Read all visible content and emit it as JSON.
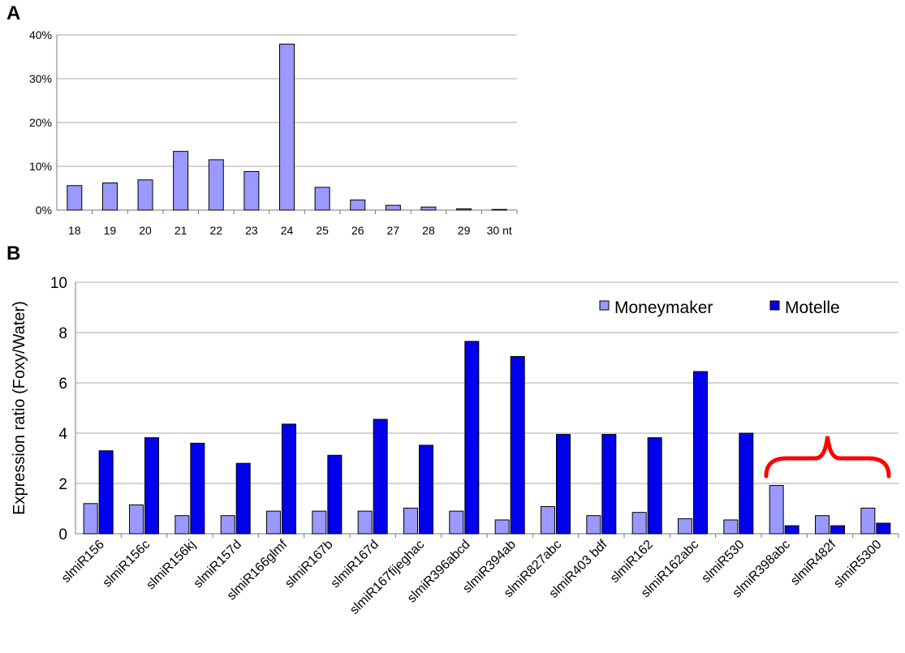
{
  "panel_a": {
    "label": "A"
  },
  "panel_b": {
    "label": "B"
  },
  "colors": {
    "light": "#9999ff",
    "dark": "#0000ee",
    "bracket": "#ff0000",
    "grid": "#aaaaaa"
  },
  "chart_data": [
    {
      "type": "bar",
      "categories": [
        "18",
        "19",
        "20",
        "21",
        "22",
        "23",
        "24",
        "25",
        "26",
        "27",
        "28",
        "29",
        "30 nt"
      ],
      "values": [
        5.6,
        6.2,
        6.9,
        13.4,
        11.5,
        8.8,
        37.9,
        5.2,
        2.3,
        1.1,
        0.7,
        0.3,
        0.15
      ],
      "ylim": [
        0,
        40
      ],
      "yticks": [
        "0%",
        "10%",
        "20%",
        "30%",
        "40%"
      ],
      "grid": true
    },
    {
      "type": "bar",
      "categories": [
        "slmiR156",
        "slmiR156c",
        "slmiR156kj",
        "slmiR157d",
        "slmiR166glmf",
        "slmiR167b",
        "slmiR167d",
        "slmiR167fijeghac",
        "slmiR396abcd",
        "slmiR394ab",
        "slmiR827abc",
        "slmiR403 bdf",
        "slmiR162",
        "slmiR162abc",
        "slmiR530",
        "slmiR398abc",
        "slmiR482f",
        "slmiR5300"
      ],
      "series": [
        {
          "name": "Moneymaker",
          "values": [
            1.2,
            1.15,
            0.72,
            0.72,
            0.9,
            0.9,
            0.9,
            1.02,
            0.9,
            0.55,
            1.08,
            0.72,
            0.85,
            0.6,
            0.55,
            1.92,
            0.72,
            1.02
          ]
        },
        {
          "name": "Motelle",
          "values": [
            3.3,
            3.82,
            3.6,
            2.8,
            4.36,
            3.12,
            4.55,
            3.52,
            7.65,
            7.05,
            3.95,
            3.95,
            3.82,
            6.45,
            4.0,
            0.32,
            0.32,
            0.42
          ]
        }
      ],
      "ylabel": "Expression ratio (Foxy/Water)",
      "ylim": [
        0,
        10
      ],
      "yticks": [
        "0",
        "2",
        "4",
        "6",
        "8",
        "10"
      ],
      "legend": "top-right",
      "grid": true
    }
  ]
}
